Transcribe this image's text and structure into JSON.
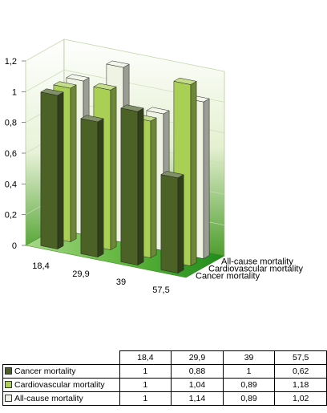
{
  "chart_data": {
    "type": "bar",
    "variant": "3d-column",
    "categories": [
      "18,4",
      "29,9",
      "39",
      "57,5"
    ],
    "series": [
      {
        "name": "Cancer mortality",
        "values": [
          1,
          0.88,
          1,
          0.62
        ],
        "color": "#4b6126"
      },
      {
        "name": "Cardiovascular mortality",
        "values": [
          1,
          1.04,
          0.89,
          1.18
        ],
        "color": "#a9cf55"
      },
      {
        "name": "All-cause mortality",
        "values": [
          1,
          1.14,
          0.89,
          1.02
        ],
        "color": "#eef3e3"
      }
    ],
    "yticks": [
      "0",
      "0,2",
      "0,4",
      "0,6",
      "0,8",
      "1",
      "1,2"
    ],
    "ylim": [
      0,
      1.2
    ],
    "title": "",
    "xlabel": "",
    "ylabel": "",
    "table": {
      "rows": [
        {
          "label": "Cancer mortality",
          "cells": [
            "1",
            "0,88",
            "1",
            "0,62"
          ]
        },
        {
          "label": "Cardiovascular mortality",
          "cells": [
            "1",
            "1,04",
            "0,89",
            "1,18"
          ]
        },
        {
          "label": "All-cause mortality",
          "cells": [
            "1",
            "1,14",
            "0,89",
            "1,02"
          ]
        }
      ]
    }
  }
}
